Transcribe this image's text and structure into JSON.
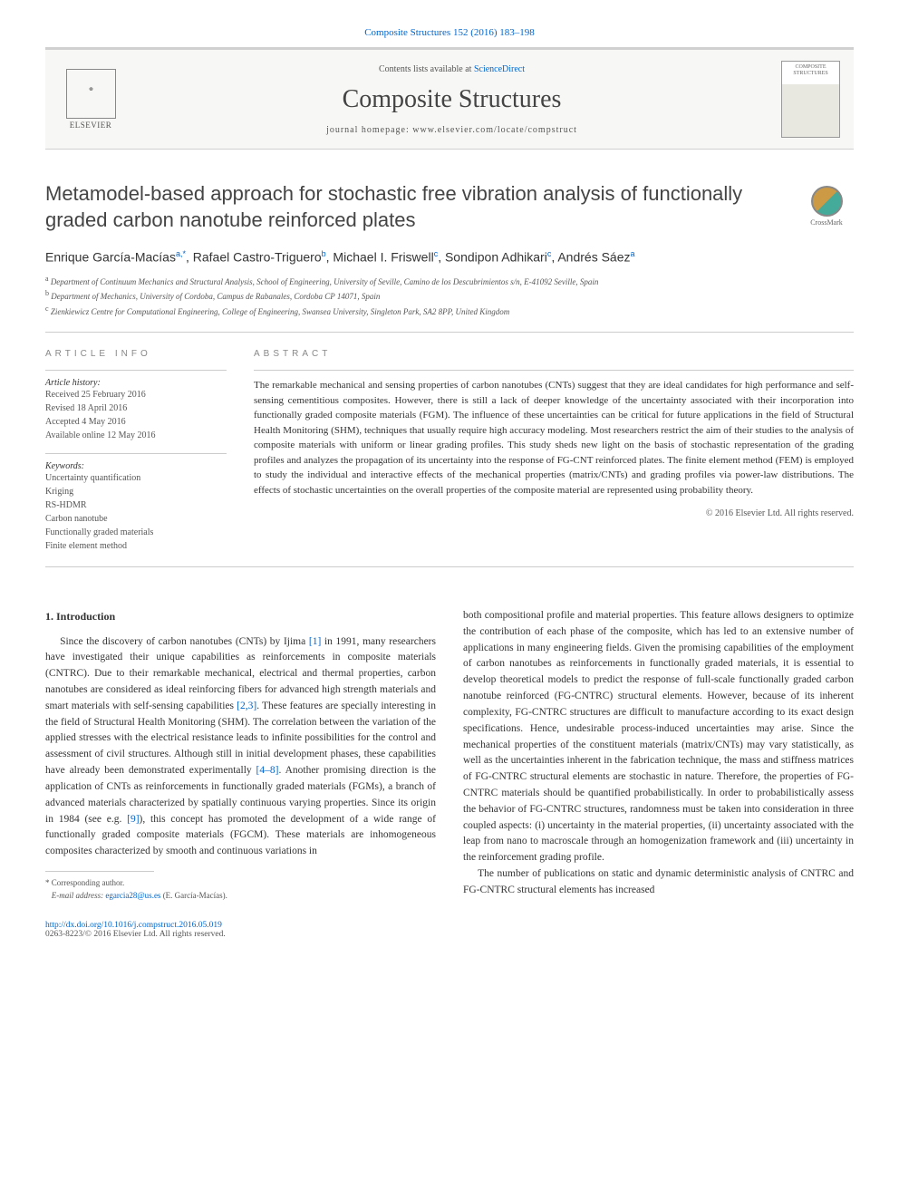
{
  "citation": "Composite Structures 152 (2016) 183–198",
  "header": {
    "contents_prefix": "Contents lists available at ",
    "contents_link": "ScienceDirect",
    "journal": "Composite Structures",
    "homepage_prefix": "journal homepage: ",
    "homepage_url": "www.elsevier.com/locate/compstruct",
    "publisher_name": "ELSEVIER",
    "cover_label": "COMPOSITE STRUCTURES"
  },
  "article": {
    "title": "Metamodel-based approach for stochastic free vibration analysis of functionally graded carbon nanotube reinforced plates",
    "crossmark": "CrossMark",
    "authors_html": "Enrique García-Macías",
    "auth_a_sup": "a,",
    "auth_a_star": "*",
    "auth_sep1": ", Rafael Castro-Triguero",
    "auth_b_sup": "b",
    "auth_sep2": ", Michael I. Friswell",
    "auth_c_sup": "c",
    "auth_sep3": ", Sondipon Adhikari",
    "auth_c2_sup": "c",
    "auth_sep4": ", Andrés Sáez",
    "auth_a2_sup": "a"
  },
  "affiliations": {
    "a": "Department of Continuum Mechanics and Structural Analysis, School of Engineering, University of Seville, Camino de los Descubrimientos s/n, E-41092 Seville, Spain",
    "b": "Department of Mechanics, University of Cordoba, Campus de Rabanales, Cordoba CP 14071, Spain",
    "c": "Zienkiewicz Centre for Computational Engineering, College of Engineering, Swansea University, Singleton Park, SA2 8PP, United Kingdom"
  },
  "info": {
    "heading": "ARTICLE INFO",
    "history_label": "Article history:",
    "received": "Received 25 February 2016",
    "revised": "Revised 18 April 2016",
    "accepted": "Accepted 4 May 2016",
    "online": "Available online 12 May 2016",
    "keywords_label": "Keywords:",
    "keywords": [
      "Uncertainty quantification",
      "Kriging",
      "RS-HDMR",
      "Carbon nanotube",
      "Functionally graded materials",
      "Finite element method"
    ]
  },
  "abstract": {
    "heading": "ABSTRACT",
    "text": "The remarkable mechanical and sensing properties of carbon nanotubes (CNTs) suggest that they are ideal candidates for high performance and self-sensing cementitious composites. However, there is still a lack of deeper knowledge of the uncertainty associated with their incorporation into functionally graded composite materials (FGM). The influence of these uncertainties can be critical for future applications in the field of Structural Health Monitoring (SHM), techniques that usually require high accuracy modeling. Most researchers restrict the aim of their studies to the analysis of composite materials with uniform or linear grading profiles. This study sheds new light on the basis of stochastic representation of the grading profiles and analyzes the propagation of its uncertainty into the response of FG-CNT reinforced plates. The finite element method (FEM) is employed to study the individual and interactive effects of the mechanical properties (matrix/CNTs) and grading profiles via power-law distributions. The effects of stochastic uncertainties on the overall properties of the composite material are represented using probability theory.",
    "copyright": "© 2016 Elsevier Ltd. All rights reserved."
  },
  "intro": {
    "heading": "1. Introduction",
    "p1_a": "Since the discovery of carbon nanotubes (CNTs) by Ijima ",
    "ref1": "[1]",
    "p1_b": " in 1991, many researchers have investigated their unique capabilities as reinforcements in composite materials (CNTRC). Due to their remarkable mechanical, electrical and thermal properties, carbon nanotubes are considered as ideal reinforcing fibers for advanced high strength materials and smart materials with self-sensing capabilities ",
    "ref23": "[2,3]",
    "p1_c": ". These features are specially interesting in the field of Structural Health Monitoring (SHM). The correlation between the variation of the applied stresses with the electrical resistance leads to infinite possibilities for the control and assessment of civil structures. Although still in initial development phases, these capabilities have already been demonstrated experimentally ",
    "ref48": "[4–8]",
    "p1_d": ". Another promising direction is the application of CNTs as reinforcements in functionally graded materials (FGMs), a branch of advanced materials characterized by spatially continuous varying properties. Since its origin in 1984 (see e.g. ",
    "ref9": "[9]",
    "p1_e": "), this concept has promoted the development of a wide range of functionally graded composite materials (FGCM). These materials are inhomogeneous composites characterized by smooth and continuous variations in",
    "p2": "both compositional profile and material properties. This feature allows designers to optimize the contribution of each phase of the composite, which has led to an extensive number of applications in many engineering fields. Given the promising capabilities of the employment of carbon nanotubes as reinforcements in functionally graded materials, it is essential to develop theoretical models to predict the response of full-scale functionally graded carbon nanotube reinforced (FG-CNTRC) structural elements. However, because of its inherent complexity, FG-CNTRC structures are difficult to manufacture according to its exact design specifications. Hence, undesirable process-induced uncertainties may arise. Since the mechanical properties of the constituent materials (matrix/CNTs) may vary statistically, as well as the uncertainties inherent in the fabrication technique, the mass and stiffness matrices of FG-CNTRC structural elements are stochastic in nature. Therefore, the properties of FG-CNTRC materials should be quantified probabilistically. In order to probabilistically assess the behavior of FG-CNTRC structures, randomness must be taken into consideration in three coupled aspects: (i) uncertainty in the material properties, (ii) uncertainty associated with the leap from nano to macroscale through an homogenization framework and (iii) uncertainty in the reinforcement grading profile.",
    "p3": "The number of publications on static and dynamic deterministic analysis of CNTRC and FG-CNTRC structural elements has increased"
  },
  "corr": {
    "star": "*",
    "label": "Corresponding author.",
    "email_label": "E-mail address: ",
    "email": "egarcia28@us.es",
    "name": " (E. García-Macías)."
  },
  "footer": {
    "doi": "http://dx.doi.org/10.1016/j.compstruct.2016.05.019",
    "issn": "0263-8223/© 2016 Elsevier Ltd. All rights reserved."
  }
}
